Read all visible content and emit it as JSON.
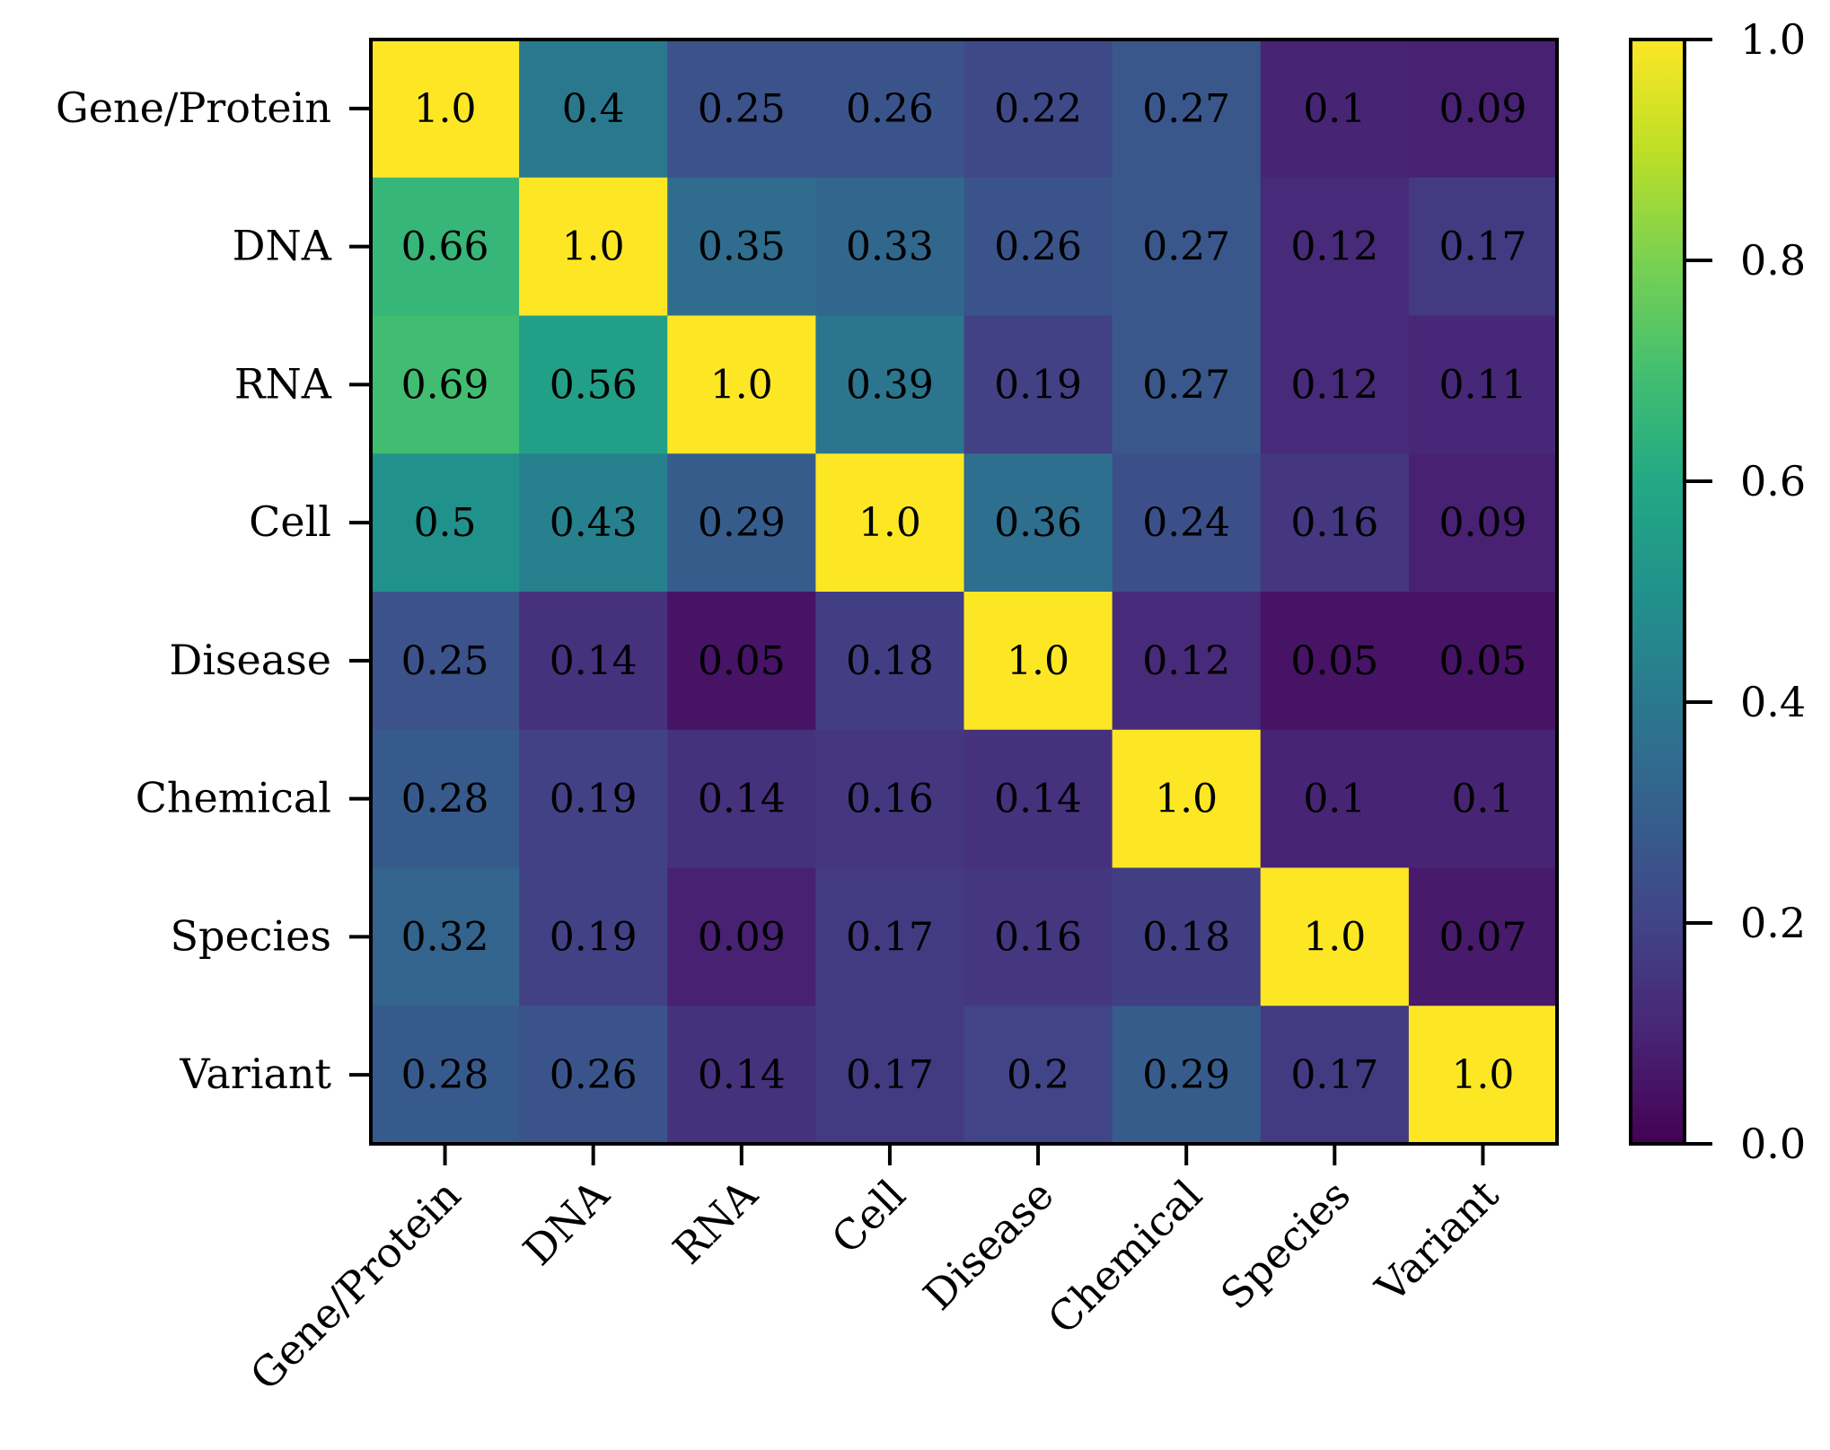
{
  "chart_data": {
    "type": "heatmap",
    "title": "",
    "xlabel": "",
    "ylabel": "",
    "rows": [
      "Gene/Protein",
      "DNA",
      "RNA",
      "Cell",
      "Disease",
      "Chemical",
      "Species",
      "Variant"
    ],
    "columns": [
      "Gene/Protein",
      "DNA",
      "RNA",
      "Cell",
      "Disease",
      "Chemical",
      "Species",
      "Variant"
    ],
    "values": [
      [
        1.0,
        0.4,
        0.25,
        0.26,
        0.22,
        0.27,
        0.1,
        0.09
      ],
      [
        0.66,
        1.0,
        0.35,
        0.33,
        0.26,
        0.27,
        0.12,
        0.17
      ],
      [
        0.69,
        0.56,
        1.0,
        0.39,
        0.19,
        0.27,
        0.12,
        0.11
      ],
      [
        0.5,
        0.43,
        0.29,
        1.0,
        0.36,
        0.24,
        0.16,
        0.09
      ],
      [
        0.25,
        0.14,
        0.05,
        0.18,
        1.0,
        0.12,
        0.05,
        0.05
      ],
      [
        0.28,
        0.19,
        0.14,
        0.16,
        0.14,
        1.0,
        0.1,
        0.1
      ],
      [
        0.32,
        0.19,
        0.09,
        0.17,
        0.16,
        0.18,
        1.0,
        0.07
      ],
      [
        0.28,
        0.26,
        0.14,
        0.17,
        0.2,
        0.29,
        0.17,
        1.0
      ]
    ],
    "value_labels": [
      [
        "1.0",
        "0.4",
        "0.25",
        "0.26",
        "0.22",
        "0.27",
        "0.1",
        "0.09"
      ],
      [
        "0.66",
        "1.0",
        "0.35",
        "0.33",
        "0.26",
        "0.27",
        "0.12",
        "0.17"
      ],
      [
        "0.69",
        "0.56",
        "1.0",
        "0.39",
        "0.19",
        "0.27",
        "0.12",
        "0.11"
      ],
      [
        "0.5",
        "0.43",
        "0.29",
        "1.0",
        "0.36",
        "0.24",
        "0.16",
        "0.09"
      ],
      [
        "0.25",
        "0.14",
        "0.05",
        "0.18",
        "1.0",
        "0.12",
        "0.05",
        "0.05"
      ],
      [
        "0.28",
        "0.19",
        "0.14",
        "0.16",
        "0.14",
        "1.0",
        "0.1",
        "0.1"
      ],
      [
        "0.32",
        "0.19",
        "0.09",
        "0.17",
        "0.16",
        "0.18",
        "1.0",
        "0.07"
      ],
      [
        "0.28",
        "0.26",
        "0.14",
        "0.17",
        "0.2",
        "0.29",
        "0.17",
        "1.0"
      ]
    ],
    "colormap": "viridis",
    "colorbar": {
      "range": [
        0,
        1
      ],
      "ticks": [
        0.0,
        0.2,
        0.4,
        0.6,
        0.8,
        1.0
      ],
      "tick_labels": [
        "0.0",
        "0.2",
        "0.4",
        "0.6",
        "0.8",
        "1.0"
      ]
    }
  }
}
